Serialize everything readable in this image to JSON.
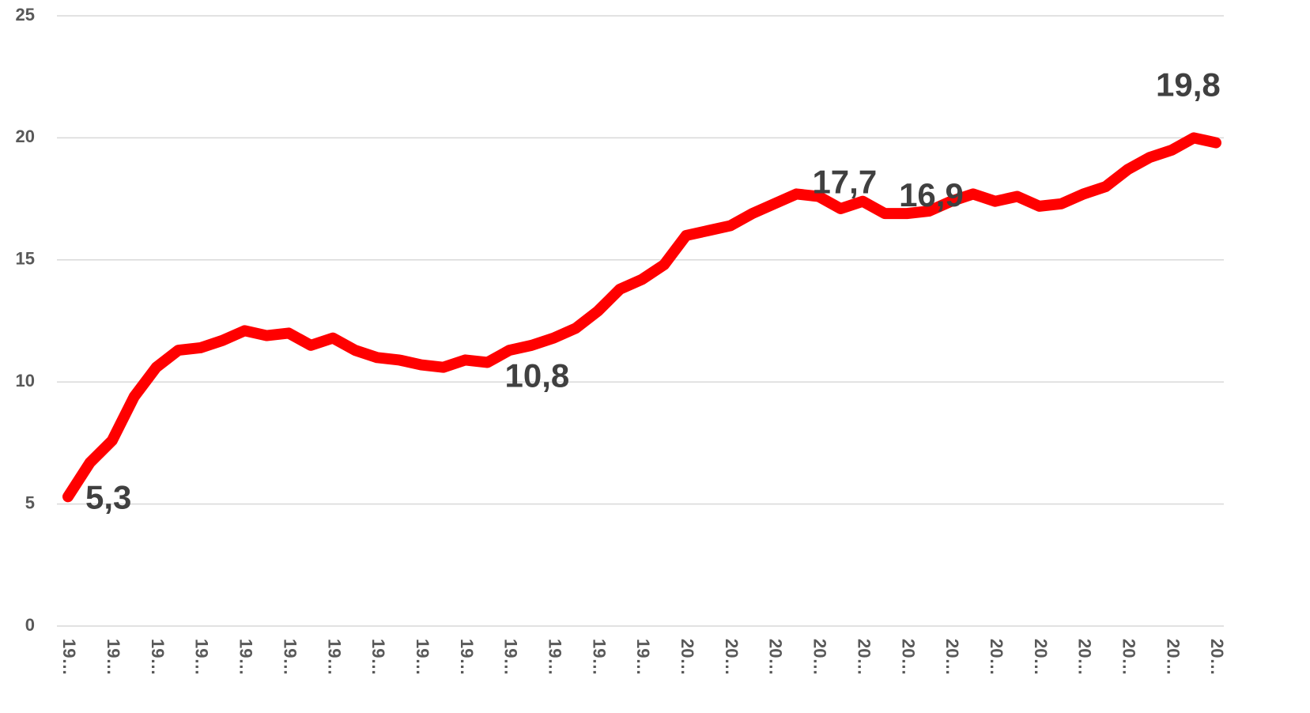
{
  "chart_data": {
    "type": "line",
    "categories": [
      "19…",
      null,
      "19…",
      null,
      "19…",
      null,
      "19…",
      null,
      "19…",
      null,
      "19…",
      null,
      "19…",
      null,
      "19…",
      null,
      "19…",
      null,
      "19…",
      null,
      "19…",
      null,
      "19…",
      null,
      "19…",
      null,
      "19…",
      null,
      "20…",
      null,
      "20…",
      null,
      "20…",
      null,
      "20…",
      null,
      "20…",
      null,
      "20…",
      null,
      "20…",
      null,
      "20…",
      null,
      "20…",
      null,
      "20…",
      null,
      "20…",
      null,
      "20…",
      null,
      "20…"
    ],
    "series": [
      {
        "color": "#ff0000",
        "values": [
          5.3,
          6.7,
          7.6,
          9.4,
          10.6,
          11.3,
          11.4,
          11.7,
          12.1,
          11.9,
          12.0,
          11.5,
          11.8,
          11.3,
          11.0,
          10.9,
          10.7,
          10.6,
          10.9,
          10.8,
          11.3,
          11.5,
          11.8,
          12.2,
          12.9,
          13.8,
          14.2,
          14.8,
          16.0,
          16.2,
          16.4,
          16.9,
          17.3,
          17.7,
          17.6,
          17.1,
          17.4,
          16.9,
          16.9,
          17.0,
          17.4,
          17.7,
          17.4,
          17.6,
          17.2,
          17.3,
          17.7,
          18.0,
          18.7,
          19.2,
          19.5,
          20.0,
          19.8
        ],
        "value_labels": [
          "5,3",
          null,
          null,
          null,
          null,
          null,
          null,
          null,
          null,
          null,
          null,
          null,
          null,
          null,
          null,
          null,
          null,
          null,
          null,
          "10,8",
          null,
          null,
          null,
          null,
          null,
          null,
          null,
          null,
          null,
          null,
          null,
          null,
          null,
          "17,7",
          null,
          null,
          null,
          null,
          "16,9",
          null,
          null,
          null,
          null,
          null,
          null,
          null,
          null,
          null,
          null,
          null,
          null,
          null,
          "19,8"
        ]
      }
    ],
    "ylim": [
      0,
      25
    ],
    "yticks": [
      0,
      5,
      10,
      15,
      20,
      25
    ],
    "grid": true
  }
}
